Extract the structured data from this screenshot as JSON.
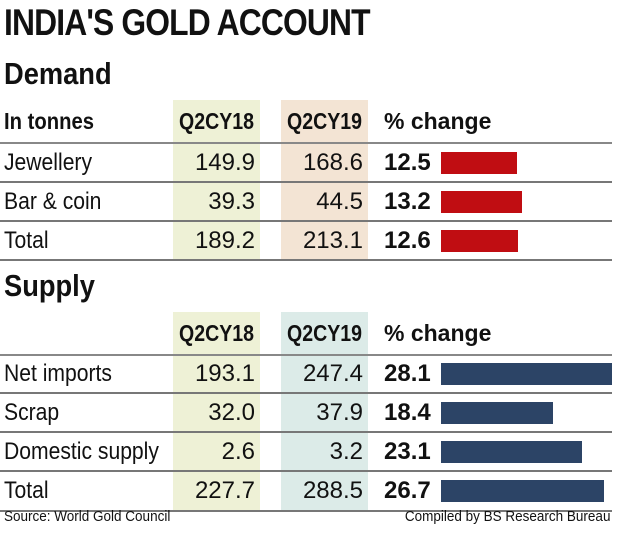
{
  "title": "INDIA'S GOLD ACCOUNT",
  "colors": {
    "demand_bar": "#c00d12",
    "supply_bar": "#2c4466",
    "band_18": "#eef1d6",
    "band_19_demand": "#f3e4d4",
    "band_19_supply": "#dcebe8"
  },
  "chart_data": [
    {
      "type": "table",
      "title": "Demand",
      "unit_label": "In tonnes",
      "columns": [
        "Q2CY18",
        "Q2CY19",
        "% change"
      ],
      "rows": [
        {
          "label": "Jewellery",
          "q18": "149.9",
          "q19": "168.6",
          "pct": 12.5,
          "pct_text": "12.5"
        },
        {
          "label": "Bar & coin",
          "q18": "39.3",
          "q19": "44.5",
          "pct": 13.2,
          "pct_text": "13.2"
        },
        {
          "label": "Total",
          "q18": "189.2",
          "q19": "213.1",
          "pct": 12.6,
          "pct_text": "12.6"
        }
      ]
    },
    {
      "type": "table",
      "title": "Supply",
      "unit_label": "",
      "columns": [
        "Q2CY18",
        "Q2CY19",
        "% change"
      ],
      "rows": [
        {
          "label": "Net imports",
          "q18": "193.1",
          "q19": "247.4",
          "pct": 28.1,
          "pct_text": "28.1"
        },
        {
          "label": "Scrap",
          "q18": "32.0",
          "q19": "37.9",
          "pct": 18.4,
          "pct_text": "18.4"
        },
        {
          "label": "Domestic supply",
          "q18": "2.6",
          "q19": "3.2",
          "pct": 23.1,
          "pct_text": "23.1"
        },
        {
          "label": "Total",
          "q18": "227.7",
          "q19": "288.5",
          "pct": 26.7,
          "pct_text": "26.7"
        }
      ]
    }
  ],
  "footer": {
    "source": "Source: World Gold Council",
    "credit": "Compiled by BS Research Bureau"
  }
}
